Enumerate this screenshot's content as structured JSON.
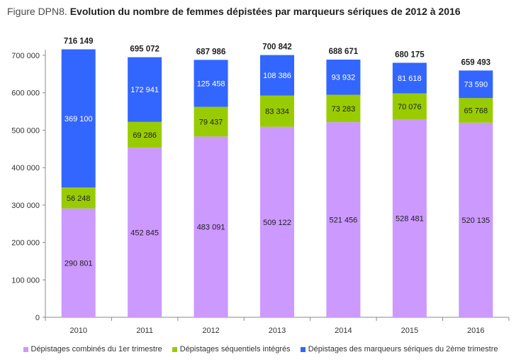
{
  "figure": {
    "label": "Figure DPN8.",
    "title": "Evolution du nombre de femmes dépistées par marqueurs sériques de 2012 à 2016"
  },
  "chart_data": {
    "type": "bar",
    "stacked": true,
    "title": "Evolution du nombre de femmes dépistées par marqueurs sériques de 2012 à 2016",
    "categories": [
      "2010",
      "2011",
      "2012",
      "2013",
      "2014",
      "2015",
      "2016"
    ],
    "series": [
      {
        "name": "Dépistages combinés du 1er trimestre",
        "color": "#cc99ff",
        "values": [
          290801,
          452845,
          483091,
          509122,
          521456,
          528481,
          520135
        ],
        "labels": [
          "290 801",
          "452 845",
          "483 091",
          "509 122",
          "521 456",
          "528 481",
          "520 135"
        ]
      },
      {
        "name": "Dépistages séquentiels intégrés",
        "color": "#99cc00",
        "values": [
          56248,
          69286,
          79437,
          83334,
          73283,
          70076,
          65768
        ],
        "labels": [
          "56 248",
          "69 286",
          "79 437",
          "83 334",
          "73 283",
          "70 076",
          "65 768"
        ]
      },
      {
        "name": "Dépistages des marqueurs sériques du 2ème trimestre",
        "color": "#3366ff",
        "values": [
          369100,
          172941,
          125458,
          108386,
          93932,
          81618,
          73590
        ],
        "labels": [
          "369 100",
          "172 941",
          "125 458",
          "108 386",
          "93 932",
          "81 618",
          "73 590"
        ]
      }
    ],
    "totals": [
      716149,
      695072,
      687986,
      700842,
      688671,
      680175,
      659493
    ],
    "total_labels": [
      "716 149",
      "695 072",
      "687 986",
      "700 842",
      "688 671",
      "680 175",
      "659 493"
    ],
    "ylim": [
      0,
      700000
    ],
    "y_ticks": [
      0,
      100000,
      200000,
      300000,
      400000,
      500000,
      600000,
      700000
    ],
    "y_tick_labels": [
      "0",
      "100 000",
      "200 000",
      "300 000",
      "400 000",
      "500 000",
      "600 000",
      "700 000"
    ],
    "grid": false,
    "legend_position": "bottom"
  }
}
